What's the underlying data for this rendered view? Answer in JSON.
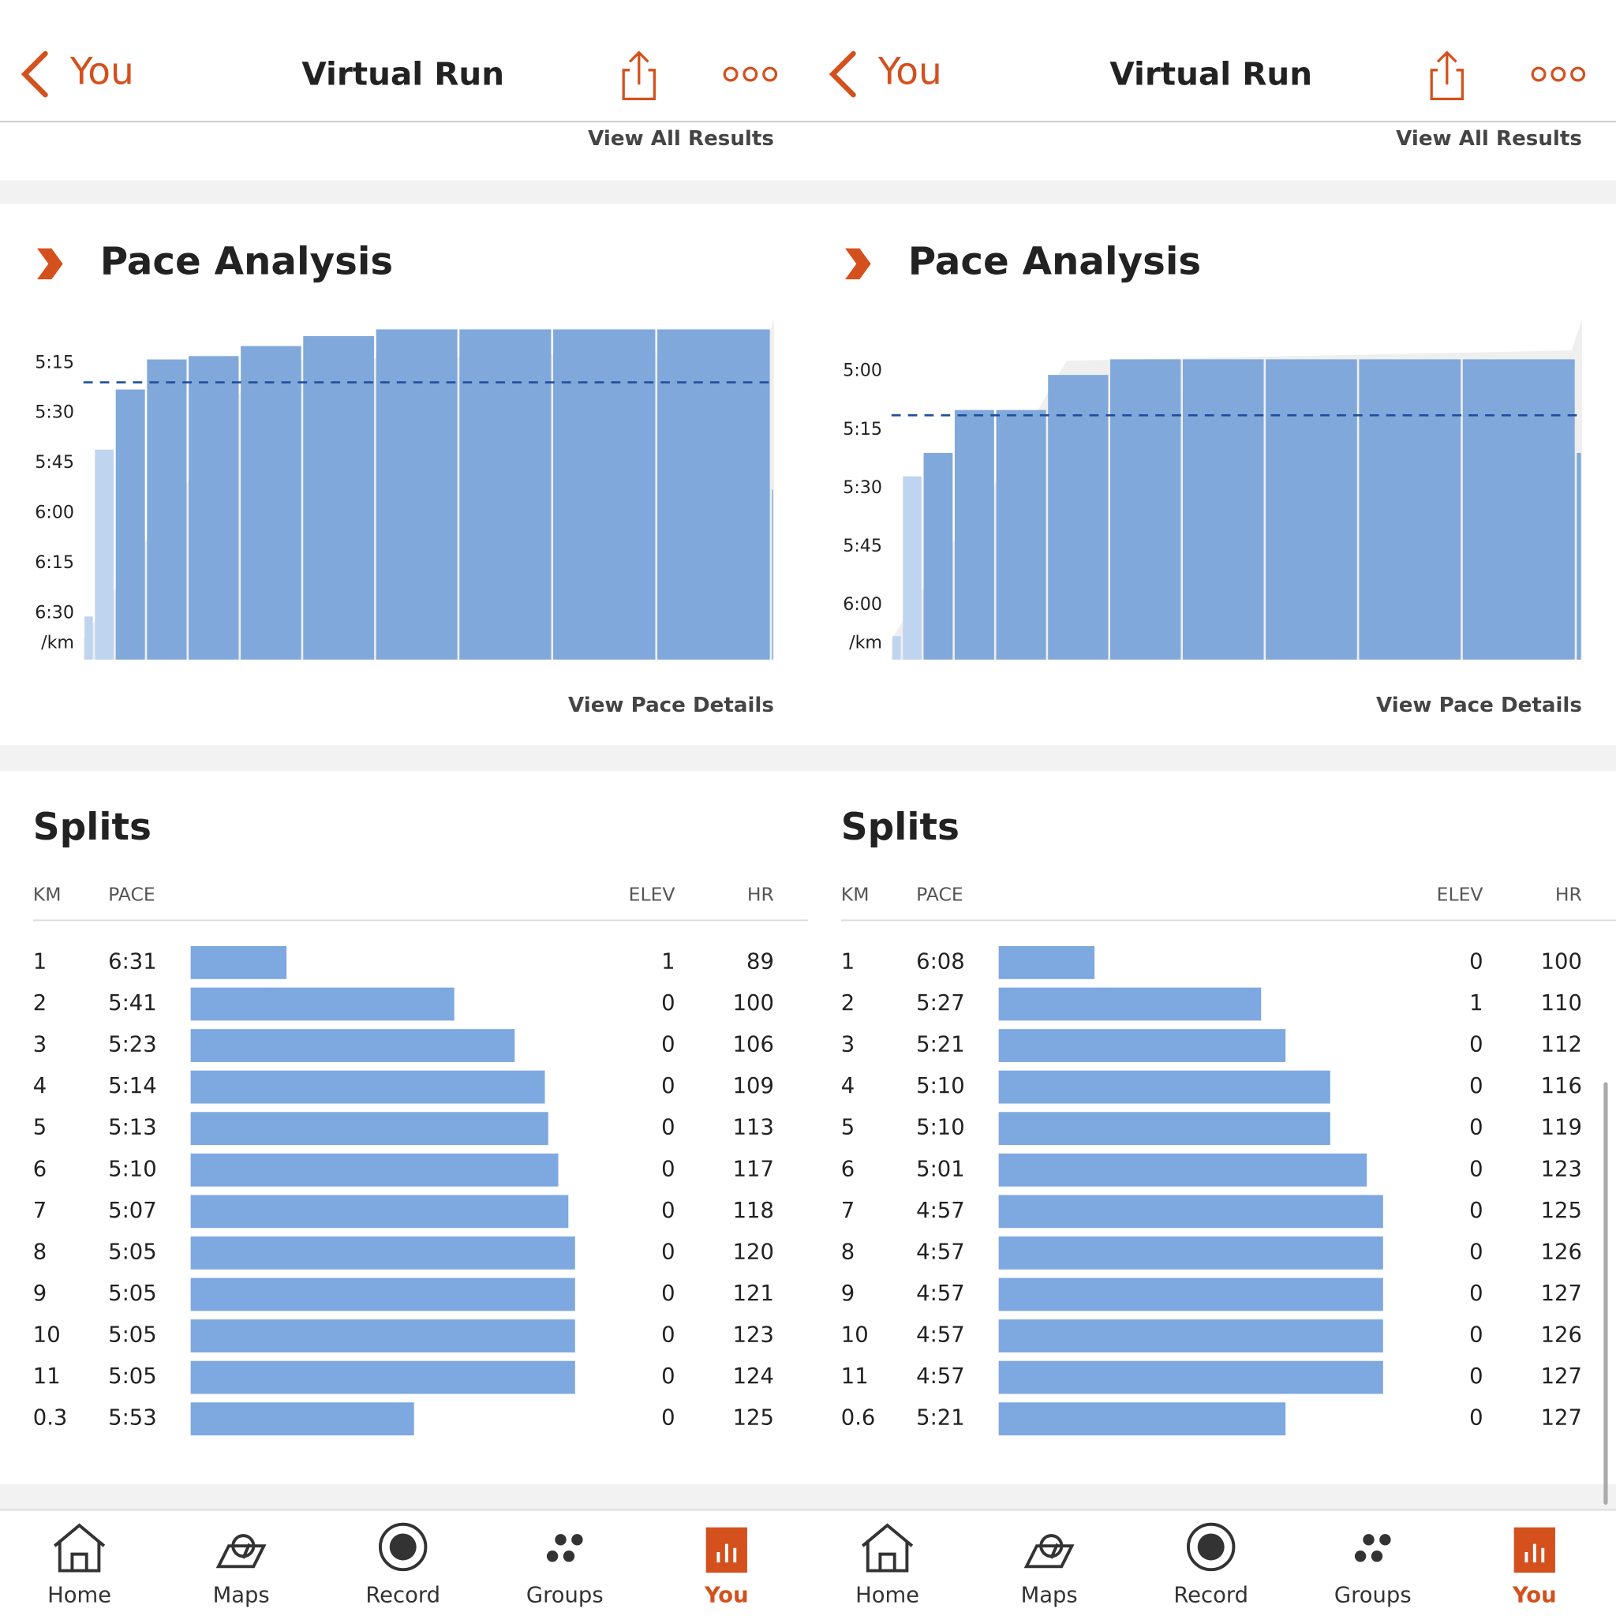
{
  "screens": [
    {
      "header": {
        "back": "You",
        "title": "Virtual Run"
      },
      "view_all_results": "View All Results",
      "pace_analysis": {
        "title": "Pace Analysis",
        "yticks": [
          "5:15",
          "5:30",
          "5:45",
          "6:00",
          "6:15",
          "6:30"
        ],
        "unit": "/km",
        "link": "View Pace Details"
      },
      "splits": {
        "title": "Splits",
        "columns": [
          "KM",
          "PACE",
          "ELEV",
          "HR"
        ],
        "rows": [
          [
            "1",
            "6:31",
            "1",
            "89"
          ],
          [
            "2",
            "5:41",
            "0",
            "100"
          ],
          [
            "3",
            "5:23",
            "0",
            "106"
          ],
          [
            "4",
            "5:14",
            "0",
            "109"
          ],
          [
            "5",
            "5:13",
            "0",
            "113"
          ],
          [
            "6",
            "5:10",
            "0",
            "117"
          ],
          [
            "7",
            "5:07",
            "0",
            "118"
          ],
          [
            "8",
            "5:05",
            "0",
            "120"
          ],
          [
            "9",
            "5:05",
            "0",
            "121"
          ],
          [
            "10",
            "5:05",
            "0",
            "123"
          ],
          [
            "11",
            "5:05",
            "0",
            "124"
          ],
          [
            "0.3",
            "5:53",
            "0",
            "125"
          ]
        ]
      },
      "nav": [
        "Home",
        "Maps",
        "Record",
        "Groups",
        "You"
      ]
    },
    {
      "header": {
        "back": "You",
        "title": "Virtual Run"
      },
      "view_all_results": "View All Results",
      "pace_analysis": {
        "title": "Pace Analysis",
        "yticks": [
          "5:00",
          "5:15",
          "5:30",
          "5:45",
          "6:00"
        ],
        "unit": "/km",
        "link": "View Pace Details"
      },
      "splits": {
        "title": "Splits",
        "columns": [
          "KM",
          "PACE",
          "ELEV",
          "HR"
        ],
        "rows": [
          [
            "1",
            "6:08",
            "0",
            "100"
          ],
          [
            "2",
            "5:27",
            "1",
            "110"
          ],
          [
            "3",
            "5:21",
            "0",
            "112"
          ],
          [
            "4",
            "5:10",
            "0",
            "116"
          ],
          [
            "5",
            "5:10",
            "0",
            "119"
          ],
          [
            "6",
            "5:01",
            "0",
            "123"
          ],
          [
            "7",
            "4:57",
            "0",
            "125"
          ],
          [
            "8",
            "4:57",
            "0",
            "126"
          ],
          [
            "9",
            "4:57",
            "0",
            "127"
          ],
          [
            "10",
            "4:57",
            "0",
            "126"
          ],
          [
            "11",
            "4:57",
            "0",
            "127"
          ],
          [
            "0.6",
            "5:21",
            "0",
            "127"
          ]
        ]
      },
      "nav": [
        "Home",
        "Maps",
        "Record",
        "Groups",
        "You"
      ]
    }
  ]
}
